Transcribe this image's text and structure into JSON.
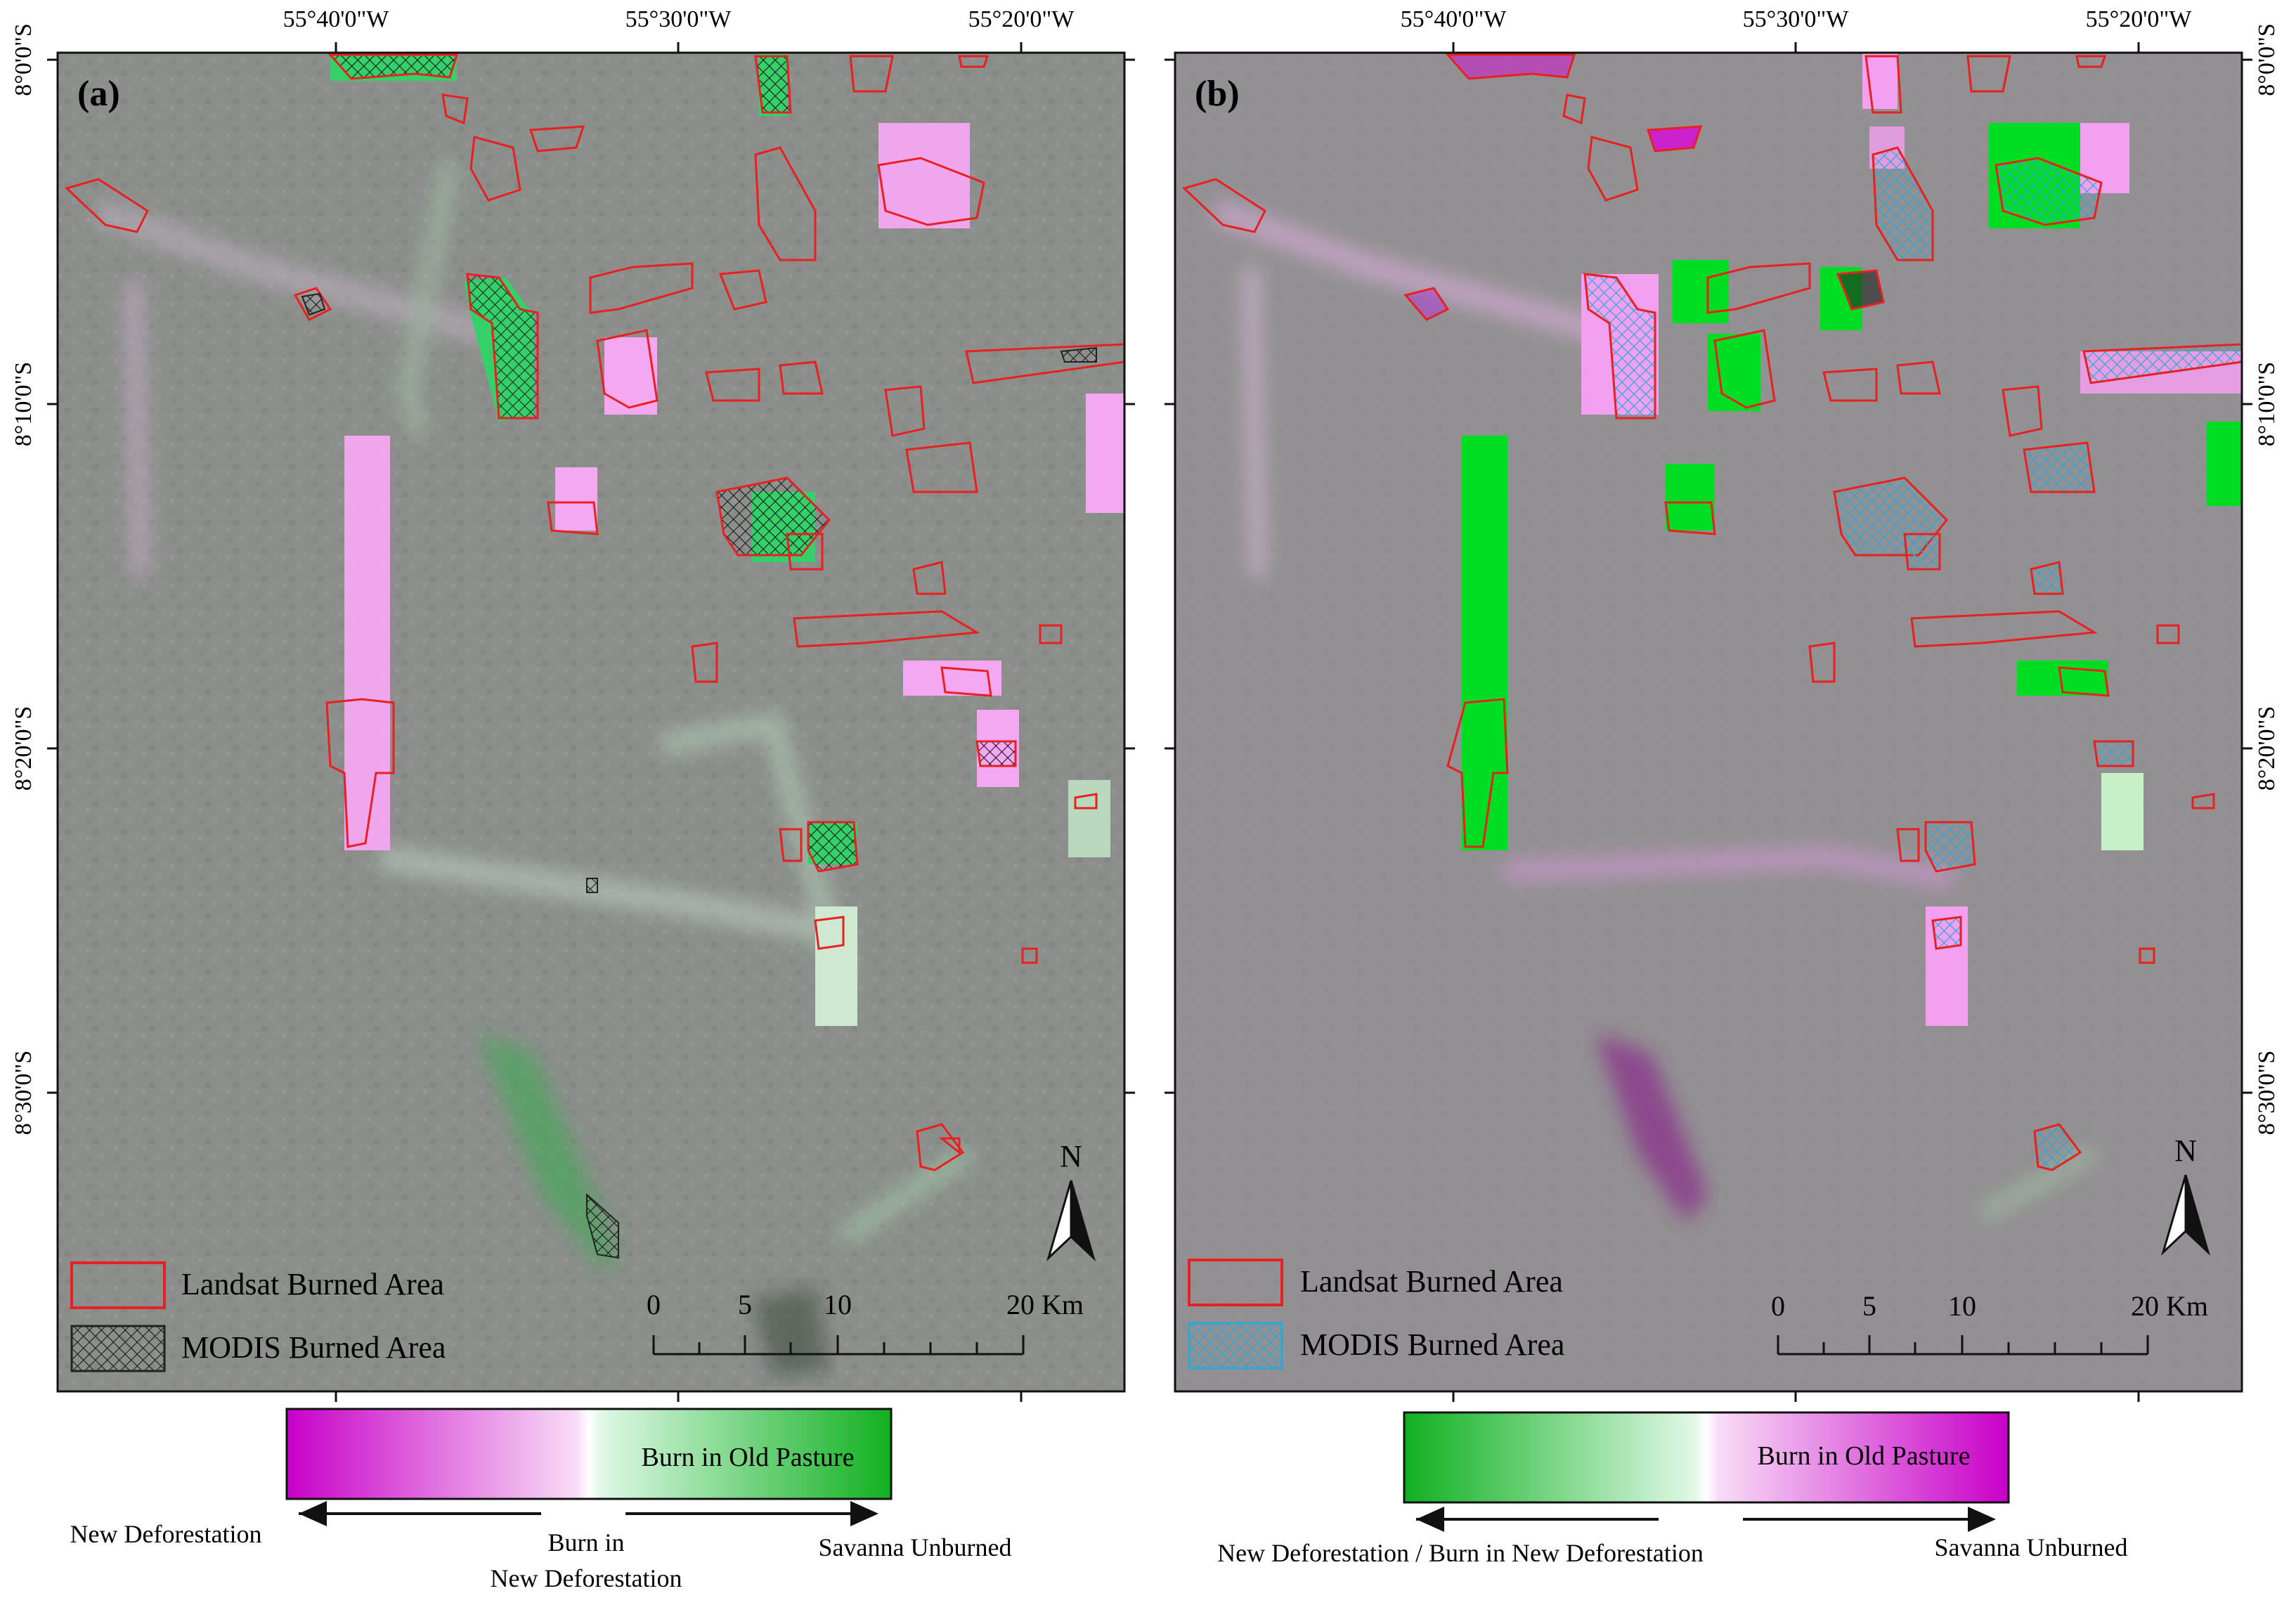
{
  "panels": [
    {
      "id": "a",
      "label": "(a)",
      "lon_labels": [
        "55°40'0\"W",
        "55°30'0\"W",
        "55°20'0\"W"
      ],
      "lat_labels": [
        "8°0'0\"S",
        "8°10'0\"S",
        "8°20'0\"S",
        "8°30'0\"S"
      ],
      "north": "N",
      "legend": [
        {
          "label": "Landsat Burned Area",
          "kind": "outline",
          "color": "#e82020"
        },
        {
          "label": "MODIS Burned Area",
          "kind": "hatch",
          "color": "#222222"
        }
      ],
      "scalebar": {
        "ticks": [
          "0",
          "5",
          "10",
          "20 Km"
        ]
      },
      "colorbar": {
        "gradient": [
          "#c800c8",
          "#f6d8f4",
          "#dff8e6",
          "#10b020"
        ],
        "mid_label": "Burn in Old Pasture",
        "left_label": "New Deforestation",
        "center_label": [
          "Burn in",
          "New Deforestation"
        ],
        "right_label": "Savanna Unburned"
      }
    },
    {
      "id": "b",
      "label": "(b)",
      "lon_labels": [
        "55°40'0\"W",
        "55°30'0\"W",
        "55°20'0\"W"
      ],
      "lat_labels": [
        "8°0'0\"S",
        "8°10'0\"S",
        "8°20'0\"S",
        "8°30'0\"S"
      ],
      "north": "N",
      "legend": [
        {
          "label": "Landsat Burned Area",
          "kind": "outline",
          "color": "#e82020"
        },
        {
          "label": "MODIS Burned Area",
          "kind": "hatch",
          "color": "#2aa8d8"
        }
      ],
      "scalebar": {
        "ticks": [
          "0",
          "5",
          "10",
          "20 Km"
        ]
      },
      "colorbar": {
        "gradient": [
          "#10b020",
          "#dff8e6",
          "#f6d8f4",
          "#c800c8"
        ],
        "mid_label": "Burn in Old Pasture",
        "left_label": "New Deforestation / Burn in New Deforestation",
        "right_label": "Savanna Unburned"
      }
    }
  ],
  "colors": {
    "map_background": "#8a8d8a",
    "pink_patch": "#f3a0f0",
    "green_patch": "#33d060",
    "bright_green": "#00dd22",
    "burn_outline": "#e82020",
    "modis_blue": "#2aa8d8"
  }
}
